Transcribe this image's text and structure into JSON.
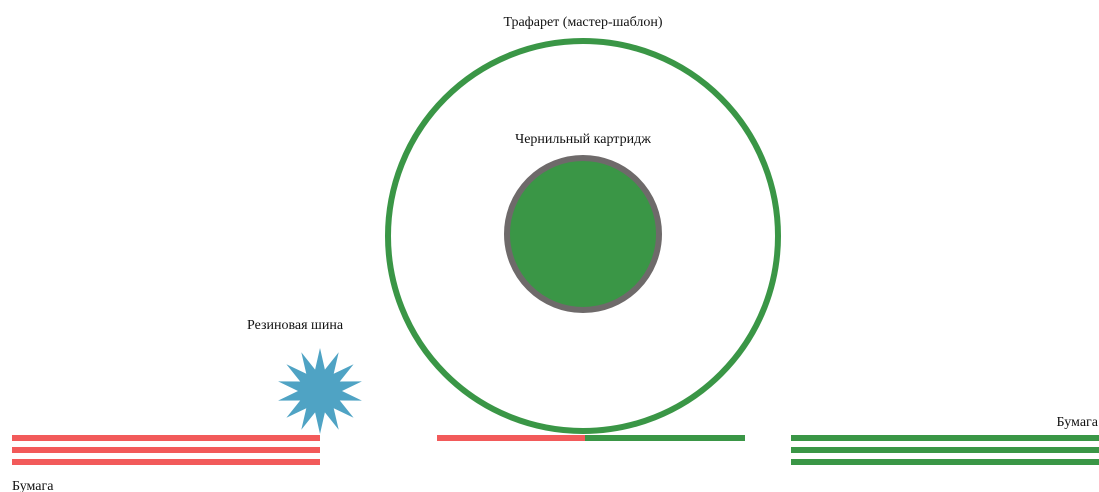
{
  "labels": {
    "stencil": "Трафарет (мастер-шаблон)",
    "ink_cartridge": "Чернильный картридж",
    "rubber_tire": "Резиновая шина",
    "paper_left": "Бумага",
    "paper_right": "Бумага"
  },
  "colors": {
    "background": "#ffffff",
    "green": "#3a9646",
    "red": "#f25a5a",
    "cartridge_rim": "#6e6a6a",
    "tire": "#4fa3c4",
    "text": "#111111"
  },
  "icons": {
    "rubber_tire": "starburst-shape",
    "stencil": "ring-shape",
    "ink_cartridge": "filled-circle-shape"
  }
}
